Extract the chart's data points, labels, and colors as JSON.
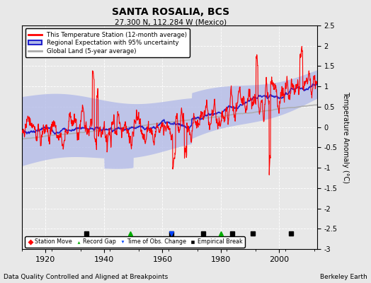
{
  "title": "SANTA ROSALIA, BCS",
  "subtitle": "27.300 N, 112.284 W (Mexico)",
  "ylabel": "Temperature Anomaly (°C)",
  "xlabel_note": "Data Quality Controlled and Aligned at Breakpoints",
  "source_note": "Berkeley Earth",
  "ylim": [
    -3,
    2.5
  ],
  "year_start": 1912,
  "year_end": 2013,
  "bg_color": "#e8e8e8",
  "plot_bg_color": "#e8e8e8",
  "station_color": "#ff0000",
  "regional_color": "#2222cc",
  "regional_fill_color": "#b0b8e8",
  "global_color": "#aaaaaa",
  "marker_empirical_breaks": [
    1934,
    1963,
    1974,
    1984,
    1991,
    2004
  ],
  "marker_record_gaps": [
    1949,
    1980
  ],
  "marker_obs_changes": [
    1963
  ],
  "marker_station_moves": []
}
